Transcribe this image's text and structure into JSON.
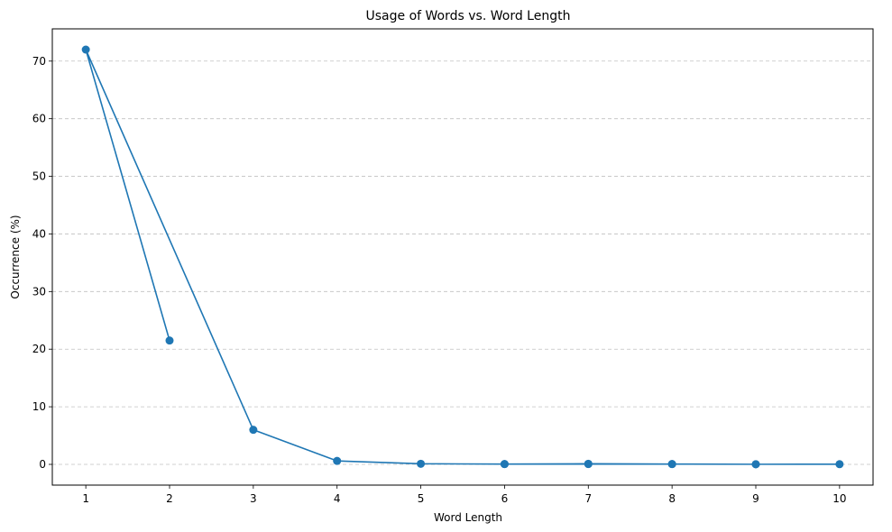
{
  "chart_data": {
    "type": "line",
    "title": "Usage of Words vs. Word Length",
    "xlabel": "Word Length",
    "ylabel": "Occurrence (%)",
    "xlim": [
      0.6,
      10.4
    ],
    "ylim": [
      -3.6,
      75.6
    ],
    "x_ticks": [
      1,
      2,
      3,
      4,
      5,
      6,
      7,
      8,
      9,
      10
    ],
    "y_ticks": [
      0,
      10,
      20,
      30,
      40,
      50,
      60,
      70
    ],
    "grid": "y-dashed",
    "legend": "none",
    "series": [
      {
        "color": "#1f77b4",
        "marker": "circle",
        "points": [
          {
            "x": 2,
            "y": 21.5
          },
          {
            "x": 1,
            "y": 72
          },
          {
            "x": 3,
            "y": 6
          },
          {
            "x": 4,
            "y": 0.6
          },
          {
            "x": 5,
            "y": 0.1
          },
          {
            "x": 6,
            "y": 0.05
          },
          {
            "x": 7,
            "y": 0.1
          },
          {
            "x": 8,
            "y": 0.05
          },
          {
            "x": 9,
            "y": 0.02
          },
          {
            "x": 10,
            "y": 0.03
          },
          {
            "x": 9,
            "y": 0.02
          },
          {
            "x": 8,
            "y": 0.05
          },
          {
            "x": 7,
            "y": 0.05
          },
          {
            "x": 6,
            "y": 0.05
          }
        ]
      }
    ]
  }
}
